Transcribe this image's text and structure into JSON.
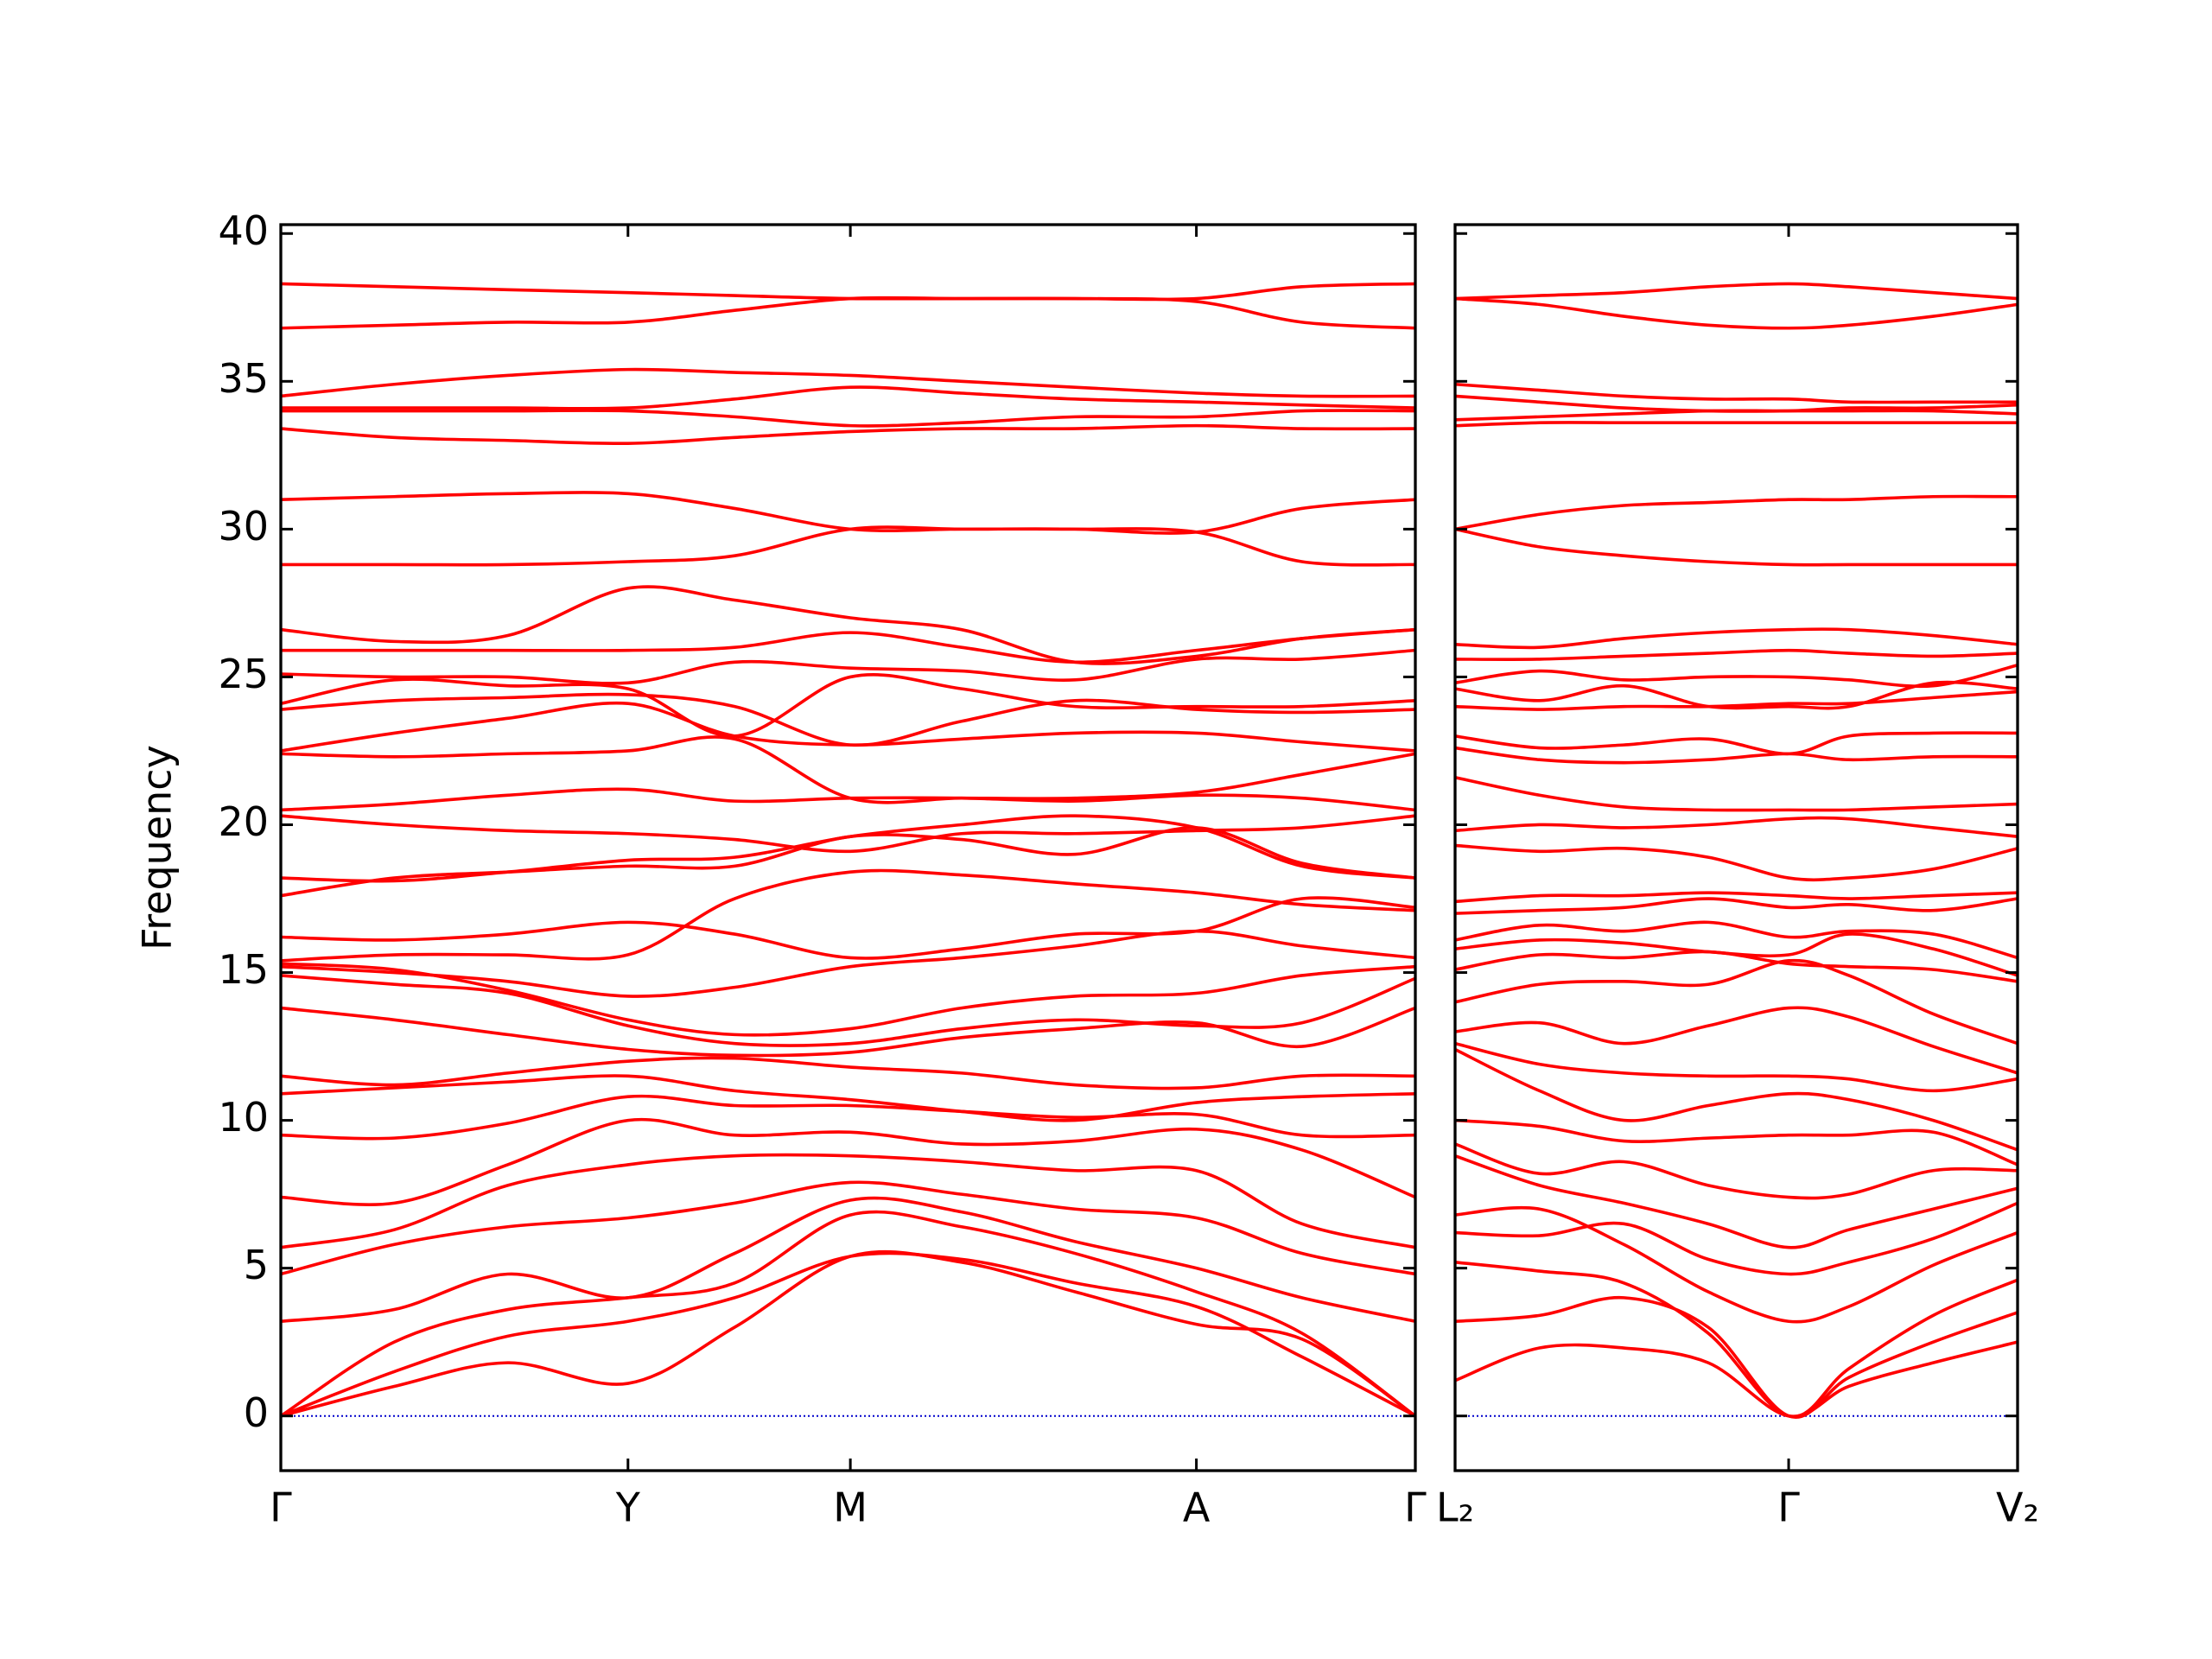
{
  "chart_data": [
    {
      "type": "line",
      "ylabel": "Frequency",
      "color": "#ff0000",
      "hline": 0,
      "hline_color": "#0000cc",
      "xlim": [
        0,
        1
      ],
      "xticks": [
        {
          "value": 0,
          "label": "Γ"
        },
        {
          "value": 0.306,
          "label": "Y"
        },
        {
          "value": 0.502,
          "label": "M"
        },
        {
          "value": 0.807,
          "label": "A"
        },
        {
          "value": 1,
          "label": "Γ"
        }
      ],
      "ylim": [
        -1.85,
        40.3
      ],
      "yticks": [
        0,
        5,
        10,
        15,
        20,
        25,
        30,
        35,
        40
      ],
      "show_ytick_labels": true,
      "x": [
        0,
        0.1,
        0.2,
        0.306,
        0.4,
        0.502,
        0.6,
        0.7,
        0.807,
        0.9,
        1
      ],
      "series": [
        {
          "values": [
            0,
            1.0,
            1.8,
            1.1,
            3.0,
            5.4,
            5.2,
            4.2,
            3.1,
            2.6,
            0
          ]
        },
        {
          "values": [
            0,
            1.5,
            2.7,
            3.2,
            4.0,
            5.4,
            5.3,
            4.5,
            3.7,
            2.0,
            0
          ]
        },
        {
          "values": [
            0,
            2.5,
            3.6,
            4.0,
            4.5,
            6.8,
            6.4,
            5.5,
            4.2,
            2.8,
            0
          ]
        },
        {
          "values": [
            3.2,
            3.6,
            4.8,
            4.0,
            5.5,
            7.3,
            6.9,
            5.9,
            5.0,
            4.0,
            3.2
          ]
        },
        {
          "values": [
            4.8,
            5.8,
            6.4,
            6.7,
            7.2,
            7.9,
            7.5,
            7.0,
            6.7,
            5.5,
            4.8
          ]
        },
        {
          "values": [
            5.7,
            6.3,
            7.8,
            8.5,
            8.8,
            8.8,
            8.6,
            8.3,
            8.3,
            6.5,
            5.7
          ]
        },
        {
          "values": [
            7.4,
            7.2,
            8.5,
            10.0,
            9.5,
            9.6,
            9.2,
            9.3,
            9.7,
            9.0,
            7.4
          ]
        },
        {
          "values": [
            9.5,
            9.4,
            9.9,
            10.8,
            10.5,
            10.5,
            10.3,
            10.1,
            10.2,
            9.5,
            9.5
          ]
        },
        {
          "values": [
            10.9,
            11.1,
            11.3,
            11.5,
            11.0,
            10.7,
            10.3,
            10.0,
            10.6,
            10.8,
            10.9
          ]
        },
        {
          "values": [
            11.5,
            11.2,
            11.6,
            12.0,
            12.1,
            11.8,
            11.6,
            11.2,
            11.1,
            11.5,
            11.5
          ]
        },
        {
          "values": [
            13.8,
            13.4,
            12.9,
            12.4,
            12.2,
            12.3,
            12.8,
            13.1,
            13.3,
            12.5,
            13.8
          ]
        },
        {
          "values": [
            14.9,
            14.6,
            14.3,
            13.2,
            12.6,
            12.6,
            13.1,
            13.4,
            13.2,
            13.3,
            14.8
          ]
        },
        {
          "values": [
            15.3,
            15.1,
            14.4,
            13.4,
            12.9,
            13.1,
            13.8,
            14.2,
            14.3,
            14.9,
            15.2
          ]
        },
        {
          "values": [
            15.2,
            15.0,
            14.7,
            14.2,
            14.5,
            15.2,
            15.5,
            15.9,
            16.4,
            15.9,
            15.5
          ]
        },
        {
          "values": [
            15.4,
            15.6,
            15.6,
            15.6,
            17.5,
            18.4,
            18.3,
            18.0,
            17.7,
            17.3,
            17.1
          ]
        },
        {
          "values": [
            16.2,
            16.1,
            16.3,
            16.7,
            16.3,
            15.5,
            15.8,
            16.3,
            16.4,
            17.5,
            17.2
          ]
        },
        {
          "values": [
            17.6,
            18.2,
            18.4,
            18.6,
            18.6,
            19.6,
            19.5,
            19.0,
            19.9,
            18.7,
            18.2
          ]
        },
        {
          "values": [
            18.2,
            18.1,
            18.4,
            18.8,
            18.9,
            19.6,
            20.0,
            20.3,
            19.9,
            18.6,
            18.2
          ]
        },
        {
          "values": [
            20.3,
            20.0,
            19.8,
            19.7,
            19.5,
            19.1,
            19.7,
            19.7,
            19.8,
            19.9,
            20.3
          ]
        },
        {
          "values": [
            20.5,
            20.7,
            21.0,
            21.2,
            20.8,
            20.9,
            20.9,
            20.8,
            21.0,
            20.9,
            20.5
          ]
        },
        {
          "values": [
            22.4,
            22.3,
            22.4,
            22.5,
            22.9,
            20.9,
            20.9,
            20.9,
            21.1,
            21.7,
            22.4
          ]
        },
        {
          "values": [
            22.5,
            23.1,
            23.6,
            24.1,
            23.0,
            22.7,
            22.9,
            23.1,
            23.1,
            22.8,
            22.5
          ]
        },
        {
          "values": [
            23.9,
            24.2,
            24.3,
            24.4,
            24.0,
            22.7,
            23.5,
            24.2,
            23.9,
            23.8,
            23.9
          ]
        },
        {
          "values": [
            24.1,
            24.9,
            24.7,
            24.6,
            23.0,
            25.0,
            24.6,
            24.0,
            24.0,
            24.0,
            24.2
          ]
        },
        {
          "values": [
            25.1,
            25.0,
            25.0,
            24.8,
            25.5,
            25.3,
            25.2,
            24.9,
            25.6,
            25.6,
            25.9
          ]
        },
        {
          "values": [
            25.9,
            25.9,
            25.9,
            25.9,
            26.0,
            26.5,
            26.0,
            25.5,
            25.9,
            26.3,
            26.6
          ]
        },
        {
          "values": [
            26.6,
            26.2,
            26.4,
            28.0,
            27.6,
            27.0,
            26.6,
            25.5,
            25.7,
            26.3,
            26.6
          ]
        },
        {
          "values": [
            28.8,
            28.8,
            28.8,
            28.9,
            29.1,
            30.0,
            30.0,
            30.0,
            29.9,
            28.9,
            28.8
          ]
        },
        {
          "values": [
            31.0,
            31.1,
            31.2,
            31.2,
            30.7,
            30.0,
            30.0,
            30.0,
            29.9,
            30.7,
            31.0
          ]
        },
        {
          "values": [
            33.4,
            33.1,
            33.0,
            32.9,
            33.1,
            33.3,
            33.4,
            33.4,
            33.5,
            33.4,
            33.4
          ]
        },
        {
          "values": [
            34.0,
            34.0,
            34.0,
            34.0,
            33.8,
            33.5,
            33.6,
            33.8,
            33.8,
            34.0,
            34.0
          ]
        },
        {
          "values": [
            34.1,
            34.1,
            34.1,
            34.1,
            34.4,
            34.8,
            34.6,
            34.4,
            34.3,
            34.2,
            34.1
          ]
        },
        {
          "values": [
            34.5,
            34.9,
            35.2,
            35.4,
            35.3,
            35.2,
            35.0,
            34.8,
            34.6,
            34.5,
            34.5
          ]
        },
        {
          "values": [
            36.8,
            36.9,
            37.0,
            37.0,
            37.4,
            37.8,
            37.8,
            37.8,
            37.7,
            37.0,
            36.8
          ]
        },
        {
          "values": [
            38.3,
            38.2,
            38.1,
            38.0,
            37.9,
            37.8,
            37.8,
            37.8,
            37.8,
            38.2,
            38.3
          ]
        }
      ]
    },
    {
      "type": "line",
      "color": "#ff0000",
      "hline": 0,
      "hline_color": "#0000cc",
      "xlim": [
        0,
        1
      ],
      "xticks": [
        {
          "value": 0,
          "label": "L₂"
        },
        {
          "value": 0.593,
          "label": "Γ"
        },
        {
          "value": 1,
          "label": "V₂"
        }
      ],
      "ylim": [
        -1.85,
        40.3
      ],
      "yticks": [
        0,
        5,
        10,
        15,
        20,
        25,
        30,
        35,
        40
      ],
      "show_ytick_labels": false,
      "x": [
        0,
        0.15,
        0.3,
        0.45,
        0.593,
        0.7,
        0.85,
        1
      ],
      "series": [
        {
          "values": [
            1.2,
            2.3,
            2.3,
            1.8,
            0,
            1.0,
            1.8,
            2.5
          ]
        },
        {
          "values": [
            3.2,
            3.4,
            4.0,
            3.0,
            0,
            1.3,
            2.5,
            3.5
          ]
        },
        {
          "values": [
            5.2,
            4.9,
            4.5,
            2.8,
            0,
            1.6,
            3.4,
            4.6
          ]
        },
        {
          "values": [
            6.8,
            7.0,
            5.8,
            4.2,
            3.2,
            3.7,
            5.1,
            6.2
          ]
        },
        {
          "values": [
            6.2,
            6.1,
            6.5,
            5.3,
            4.8,
            5.2,
            6.0,
            7.2
          ]
        },
        {
          "values": [
            8.8,
            7.8,
            7.2,
            6.5,
            5.7,
            6.3,
            7.0,
            7.7
          ]
        },
        {
          "values": [
            9.2,
            8.2,
            8.6,
            7.8,
            7.4,
            7.5,
            8.3,
            8.3
          ]
        },
        {
          "values": [
            10.0,
            9.8,
            9.3,
            9.4,
            9.5,
            9.5,
            9.6,
            8.5
          ]
        },
        {
          "values": [
            12.4,
            11.0,
            10.0,
            10.5,
            10.9,
            10.7,
            10.0,
            9.0
          ]
        },
        {
          "values": [
            12.6,
            11.9,
            11.6,
            11.5,
            11.5,
            11.4,
            11.0,
            11.4
          ]
        },
        {
          "values": [
            13.0,
            13.3,
            12.6,
            13.2,
            13.8,
            13.5,
            12.5,
            11.6
          ]
        },
        {
          "values": [
            14.0,
            14.6,
            14.7,
            14.6,
            15.4,
            14.9,
            13.6,
            12.6
          ]
        },
        {
          "values": [
            15.1,
            15.6,
            15.5,
            15.7,
            15.3,
            15.2,
            15.1,
            14.7
          ]
        },
        {
          "values": [
            15.8,
            16.1,
            16.0,
            15.7,
            15.6,
            16.3,
            15.8,
            14.9
          ]
        },
        {
          "values": [
            16.1,
            16.6,
            16.4,
            16.7,
            16.2,
            16.4,
            16.3,
            15.5
          ]
        },
        {
          "values": [
            17.0,
            17.1,
            17.2,
            17.5,
            17.2,
            17.3,
            17.1,
            17.5
          ]
        },
        {
          "values": [
            17.4,
            17.6,
            17.6,
            17.7,
            17.6,
            17.5,
            17.6,
            17.7
          ]
        },
        {
          "values": [
            19.3,
            19.1,
            19.2,
            18.9,
            18.2,
            18.2,
            18.5,
            19.2
          ]
        },
        {
          "values": [
            19.8,
            20.0,
            19.9,
            20.0,
            20.2,
            20.2,
            19.9,
            19.6
          ]
        },
        {
          "values": [
            21.6,
            21.0,
            20.6,
            20.5,
            20.5,
            20.5,
            20.6,
            20.7
          ]
        },
        {
          "values": [
            22.6,
            22.2,
            22.1,
            22.2,
            22.4,
            22.2,
            22.3,
            22.3
          ]
        },
        {
          "values": [
            23.0,
            22.6,
            22.7,
            22.9,
            22.4,
            23.0,
            23.1,
            23.1
          ]
        },
        {
          "values": [
            24.0,
            23.9,
            24.0,
            24.0,
            24.1,
            24.1,
            24.3,
            24.5
          ]
        },
        {
          "values": [
            24.6,
            24.2,
            24.7,
            24.0,
            24.0,
            24.0,
            24.8,
            24.6
          ]
        },
        {
          "values": [
            24.8,
            25.2,
            24.9,
            25.0,
            25.0,
            24.9,
            24.7,
            25.4
          ]
        },
        {
          "values": [
            25.6,
            25.6,
            25.7,
            25.8,
            25.9,
            25.8,
            25.7,
            25.8
          ]
        },
        {
          "values": [
            26.1,
            26.0,
            26.3,
            26.5,
            26.6,
            26.6,
            26.4,
            26.1
          ]
        },
        {
          "values": [
            30.0,
            29.4,
            29.1,
            28.9,
            28.8,
            28.8,
            28.8,
            28.8
          ]
        },
        {
          "values": [
            30.0,
            30.5,
            30.8,
            30.9,
            31.0,
            31.0,
            31.1,
            31.1
          ]
        },
        {
          "values": [
            33.5,
            33.6,
            33.6,
            33.6,
            33.6,
            33.6,
            33.6,
            33.6
          ]
        },
        {
          "values": [
            33.7,
            33.8,
            33.9,
            34.0,
            34.0,
            34.0,
            34.0,
            33.9
          ]
        },
        {
          "values": [
            34.5,
            34.3,
            34.1,
            34.0,
            34.0,
            34.1,
            34.1,
            34.2
          ]
        },
        {
          "values": [
            34.9,
            34.7,
            34.5,
            34.4,
            34.4,
            34.3,
            34.3,
            34.3
          ]
        },
        {
          "values": [
            37.8,
            37.6,
            37.2,
            36.9,
            36.8,
            36.9,
            37.2,
            37.6
          ]
        },
        {
          "values": [
            37.8,
            37.9,
            38.0,
            38.2,
            38.3,
            38.2,
            38.0,
            37.8
          ]
        }
      ]
    }
  ]
}
